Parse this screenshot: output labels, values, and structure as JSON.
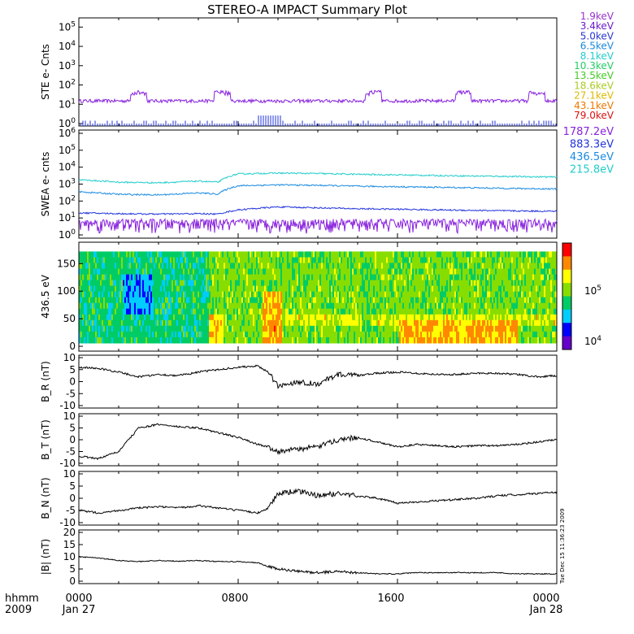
{
  "title": "STEREO-A IMPACT Summary Plot",
  "footer": {
    "time_label": "hhmm",
    "year_label": "2009",
    "x_ticks": [
      "0000",
      "0800",
      "1600",
      "0000"
    ],
    "date_ticks": [
      "Jan 27",
      "Jan 28"
    ],
    "timestamp": "Tue Dec 15 11:36:23 2009"
  },
  "colors": {
    "axes": "#000000",
    "trace": "#000000"
  },
  "chart_data": [
    {
      "type": "line",
      "ylabel": "STE e- Cnts",
      "yscale": "log",
      "y_tick_labels": [
        "10^0",
        "10^1",
        "10^2",
        "10^3",
        "10^4",
        "10^5"
      ],
      "legend": [
        {
          "label": "1.9keV",
          "color": "#9933cc"
        },
        {
          "label": "3.4keV",
          "color": "#6a1acc"
        },
        {
          "label": "5.0keV",
          "color": "#2a36d0"
        },
        {
          "label": "6.5keV",
          "color": "#1a8ae0"
        },
        {
          "label": "8.1keV",
          "color": "#22cccc"
        },
        {
          "label": "10.3keV",
          "color": "#22cc66"
        },
        {
          "label": "13.5keV",
          "color": "#44cc22"
        },
        {
          "label": "18.6keV",
          "color": "#aacc22"
        },
        {
          "label": "27.1keV",
          "color": "#ddbb00"
        },
        {
          "label": "43.1keV",
          "color": "#ee7700"
        },
        {
          "label": "79.0keV",
          "color": "#dd1111"
        }
      ],
      "series": [
        {
          "name": "1.9keV",
          "color": "#8822dd",
          "baseline": 15,
          "bumps_at_hours": [
            3.0,
            7.2,
            14.8,
            19.3,
            23.0
          ],
          "bump_value": 40
        }
      ]
    },
    {
      "type": "line",
      "ylabel": "SWEA e- cnts",
      "yscale": "log",
      "y_tick_labels": [
        "10^0",
        "10^1",
        "10^2",
        "10^3",
        "10^4",
        "10^5",
        "10^6"
      ],
      "legend": [
        {
          "label": "1787.2eV",
          "color": "#8822dd"
        },
        {
          "label": "883.3eV",
          "color": "#2233dd"
        },
        {
          "label": "436.5eV",
          "color": "#1a8ae0"
        },
        {
          "label": "215.8eV",
          "color": "#22cccc"
        }
      ],
      "series": [
        {
          "name": "215.8eV",
          "color": "#22cccc",
          "x": [
            0,
            2,
            4,
            6,
            7,
            8,
            10,
            12,
            14,
            16,
            18,
            20,
            22,
            24
          ],
          "y": [
            1800,
            1300,
            1200,
            1500,
            1300,
            4000,
            4500,
            4200,
            3800,
            3500,
            3200,
            3000,
            2800,
            2600
          ]
        },
        {
          "name": "436.5eV",
          "color": "#1a8ae0",
          "x": [
            0,
            2,
            4,
            6,
            7,
            8,
            10,
            12,
            14,
            16,
            18,
            20,
            22,
            24
          ],
          "y": [
            350,
            250,
            230,
            300,
            260,
            800,
            900,
            850,
            750,
            700,
            650,
            600,
            550,
            520
          ]
        },
        {
          "name": "883.3eV",
          "color": "#2233dd",
          "x": [
            0,
            2,
            4,
            6,
            7,
            8,
            10,
            12,
            14,
            16,
            18,
            20,
            22,
            24
          ],
          "y": [
            20,
            18,
            17,
            18,
            17,
            30,
            45,
            40,
            35,
            33,
            30,
            28,
            26,
            25
          ]
        },
        {
          "name": "1787.2eV",
          "color": "#8822dd",
          "x": [
            0,
            24
          ],
          "y": [
            3,
            3
          ]
        }
      ]
    },
    {
      "type": "heatmap",
      "ylabel": "436.5 eV",
      "y_tick_labels": [
        "0",
        "50",
        "100",
        "150"
      ],
      "ylim": [
        0,
        180
      ],
      "colorbar_labels": [
        "10^4",
        "10^5"
      ],
      "colorbar_colors": [
        "#6600cc",
        "#0000ff",
        "#00ccff",
        "#00cc66",
        "#88dd00",
        "#ffff00",
        "#ff8800",
        "#ff0000"
      ]
    },
    {
      "type": "line",
      "ylabel": "B_R (nT)",
      "ylim": [
        -10,
        10
      ],
      "y_tick_labels": [
        "10",
        "5",
        "0",
        "-5",
        "-10"
      ],
      "x": [
        0,
        1,
        2,
        3,
        4,
        5,
        6,
        7,
        8,
        9,
        9.5,
        10,
        11,
        12,
        13,
        14,
        15,
        16,
        17,
        18,
        19,
        20,
        21,
        22,
        23,
        24
      ],
      "y": [
        6,
        5.5,
        4,
        2,
        3,
        2.5,
        4,
        5,
        6,
        6.5,
        4,
        -2,
        0,
        -1,
        3,
        2.5,
        3.5,
        4,
        3.5,
        3,
        3,
        3.5,
        3.5,
        3,
        2,
        2.5
      ]
    },
    {
      "type": "line",
      "ylabel": "B_T (nT)",
      "ylim": [
        -10,
        10
      ],
      "y_tick_labels": [
        "10",
        "5",
        "0",
        "-5",
        "-10"
      ],
      "x": [
        0,
        1,
        2,
        3,
        4,
        5,
        6,
        7,
        8,
        9,
        9.5,
        10,
        11,
        12,
        13,
        14,
        15,
        16,
        17,
        18,
        19,
        20,
        21,
        22,
        23,
        24
      ],
      "y": [
        -7,
        -8,
        -5,
        5,
        6.5,
        5.5,
        5,
        3,
        1,
        -2,
        -3,
        -5,
        -4,
        -3,
        0,
        1,
        -1,
        -3,
        -2,
        -2.5,
        -3,
        -2.5,
        -2.5,
        -2,
        -1,
        0
      ]
    },
    {
      "type": "line",
      "ylabel": "B_N (nT)",
      "ylim": [
        -10,
        10
      ],
      "y_tick_labels": [
        "10",
        "5",
        "0",
        "-5",
        "-10"
      ],
      "x": [
        0,
        1,
        2,
        3,
        4,
        5,
        6,
        7,
        8,
        9,
        9.5,
        10,
        11,
        12,
        13,
        14,
        15,
        16,
        17,
        18,
        19,
        20,
        21,
        22,
        23,
        24
      ],
      "y": [
        -5,
        -6,
        -5,
        -4,
        -3.5,
        -4,
        -3,
        -4,
        -5,
        -6,
        -4,
        2,
        3,
        1,
        2,
        1,
        0,
        -2,
        -1.5,
        -1,
        -0.5,
        0,
        1,
        1.5,
        2,
        2.5
      ]
    },
    {
      "type": "line",
      "ylabel": "|B| (nT)",
      "ylim": [
        0,
        20
      ],
      "y_tick_labels": [
        "0",
        "5",
        "10",
        "15",
        "20"
      ],
      "x": [
        0,
        1,
        2,
        3,
        4,
        5,
        6,
        7,
        8,
        9,
        9.5,
        10,
        11,
        12,
        13,
        14,
        15,
        16,
        17,
        18,
        19,
        20,
        21,
        22,
        23,
        24
      ],
      "y": [
        10,
        9.5,
        8.5,
        8,
        8.5,
        8.2,
        8.5,
        8,
        8,
        7.5,
        6,
        5,
        4,
        3.5,
        4,
        3.5,
        3,
        3,
        3.5,
        3.5,
        3.5,
        3.5,
        3.5,
        3,
        3,
        3
      ]
    }
  ]
}
